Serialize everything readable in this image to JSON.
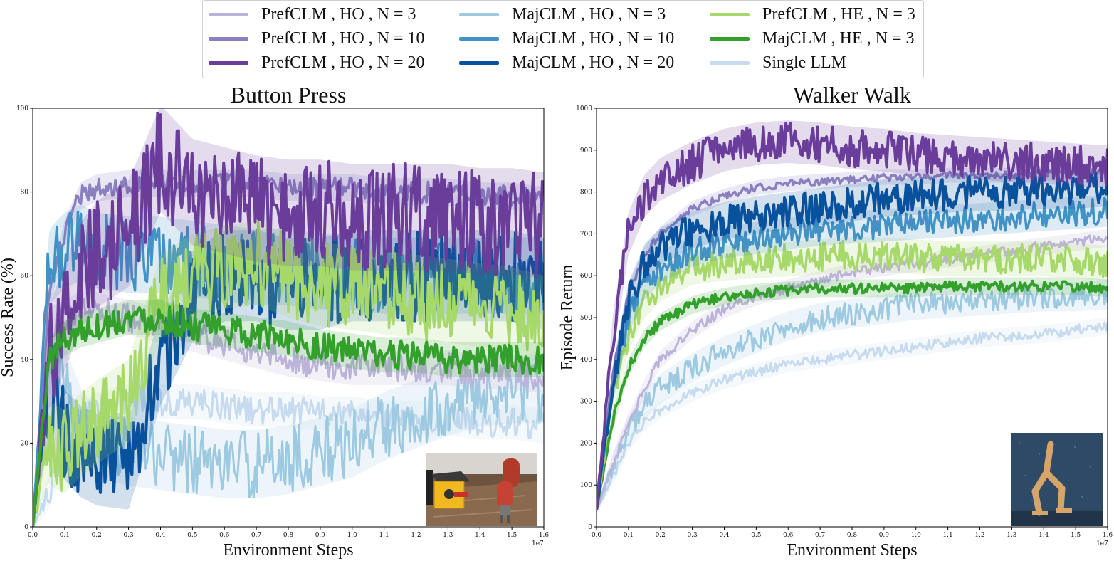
{
  "legend": [
    {
      "name": "PrefCLM , HO , N = 3",
      "color": "#bcb3da"
    },
    {
      "name": "PrefCLM , HO , N = 10",
      "color": "#8a80c0"
    },
    {
      "name": "PrefCLM , HO , N = 20",
      "color": "#6a3d9a"
    },
    {
      "name": "MajCLM , HO , N = 3",
      "color": "#9ecae1"
    },
    {
      "name": "MajCLM , HO , N = 10",
      "color": "#4292c6"
    },
    {
      "name": "MajCLM , HO , N = 20",
      "color": "#08519c"
    },
    {
      "name": "PrefCLM , HE , N = 3",
      "color": "#a6d96a"
    },
    {
      "name": "MajCLM , HE , N = 3",
      "color": "#33a02c"
    },
    {
      "name": "Single LLM",
      "color": "#c6dbef"
    }
  ],
  "chart_data": [
    {
      "type": "line",
      "title": "Button Press",
      "xlabel": "Environment Steps",
      "ylabel": "Success Rate (%)",
      "x_offset_label": "1e7",
      "xlim": [
        0.0,
        1.6
      ],
      "ylim": [
        0,
        100
      ],
      "xticks": [
        "0.0",
        "0.1",
        "0.2",
        "0.3",
        "0.4",
        "0.5",
        "0.6",
        "0.7",
        "0.8",
        "0.9",
        "1.0",
        "1.1",
        "1.2",
        "1.3",
        "1.4",
        "1.5",
        "1.6"
      ],
      "yticks": [
        "0",
        "20",
        "40",
        "60",
        "80",
        "100"
      ],
      "inset": "robot-arm-button-scene",
      "x": [
        0.0,
        0.05,
        0.1,
        0.15,
        0.2,
        0.3,
        0.4,
        0.5,
        0.6,
        0.7,
        0.8,
        0.9,
        1.0,
        1.1,
        1.2,
        1.3,
        1.4,
        1.5,
        1.6
      ],
      "series": [
        {
          "name": "Single LLM",
          "values": [
            0,
            8,
            20,
            25,
            28,
            30,
            30,
            30,
            29,
            28,
            28,
            27,
            27,
            26,
            26,
            26,
            25,
            25,
            24
          ]
        },
        {
          "name": "MajCLM , HO , N = 3",
          "values": [
            0,
            40,
            35,
            25,
            20,
            18,
            17,
            16,
            15,
            15,
            16,
            18,
            20,
            24,
            27,
            30,
            32,
            33,
            33
          ]
        },
        {
          "name": "PrefCLM , HO , N = 3",
          "values": [
            0,
            48,
            50,
            52,
            52,
            50,
            48,
            46,
            44,
            42,
            40,
            39,
            38,
            38,
            38,
            38,
            37,
            37,
            36
          ]
        },
        {
          "name": "PrefCLM , HO , N = 10",
          "values": [
            0,
            55,
            70,
            79,
            81,
            82,
            82,
            82,
            82,
            82,
            81,
            81,
            81,
            80,
            80,
            80,
            79,
            79,
            78
          ]
        },
        {
          "name": "MajCLM , HO , N = 10",
          "values": [
            0,
            62,
            66,
            68,
            66,
            65,
            65,
            64,
            63,
            62,
            62,
            61,
            61,
            60,
            60,
            60,
            60,
            60,
            60
          ]
        },
        {
          "name": "MajCLM , HO , N = 20",
          "values": [
            0,
            30,
            22,
            18,
            16,
            15,
            40,
            55,
            60,
            60,
            58,
            58,
            60,
            60,
            60,
            60,
            60,
            60,
            58
          ]
        },
        {
          "name": "PrefCLM , HE , N = 3",
          "values": [
            0,
            20,
            18,
            22,
            25,
            30,
            55,
            60,
            62,
            63,
            60,
            58,
            57,
            56,
            55,
            54,
            53,
            52,
            50
          ]
        },
        {
          "name": "PrefCLM , HO , N = 20",
          "values": [
            0,
            40,
            50,
            60,
            65,
            70,
            88,
            80,
            78,
            76,
            75,
            75,
            74,
            74,
            74,
            74,
            73,
            73,
            72
          ]
        },
        {
          "name": "MajCLM , HE , N = 3",
          "values": [
            0,
            40,
            45,
            47,
            48,
            50,
            50,
            48,
            47,
            46,
            45,
            43,
            42,
            41,
            41,
            40,
            40,
            40,
            40
          ]
        }
      ]
    },
    {
      "type": "line",
      "title": "Walker Walk",
      "xlabel": "Environment Steps",
      "ylabel": "Episode Return",
      "x_offset_label": "1e7",
      "xlim": [
        0.0,
        1.6
      ],
      "ylim": [
        0,
        1000
      ],
      "xticks": [
        "0.0",
        "0.1",
        "0.2",
        "0.3",
        "0.4",
        "0.5",
        "0.6",
        "0.7",
        "0.8",
        "0.9",
        "1.0",
        "1.1",
        "1.2",
        "1.3",
        "1.4",
        "1.5",
        "1.6"
      ],
      "yticks": [
        "0",
        "100",
        "200",
        "300",
        "400",
        "500",
        "600",
        "700",
        "800",
        "900",
        "1000"
      ],
      "inset": "walker-robot-scene",
      "x": [
        0.0,
        0.05,
        0.1,
        0.15,
        0.2,
        0.3,
        0.4,
        0.5,
        0.6,
        0.7,
        0.8,
        0.9,
        1.0,
        1.1,
        1.2,
        1.3,
        1.4,
        1.5,
        1.6
      ],
      "series": [
        {
          "name": "Single LLM",
          "values": [
            40,
            120,
            200,
            250,
            280,
            320,
            350,
            370,
            390,
            400,
            410,
            420,
            430,
            440,
            450,
            455,
            460,
            470,
            480
          ]
        },
        {
          "name": "MajCLM , HO , N = 3",
          "values": [
            40,
            140,
            230,
            290,
            330,
            380,
            420,
            450,
            480,
            500,
            510,
            520,
            530,
            535,
            540,
            545,
            550,
            550,
            555
          ]
        },
        {
          "name": "PrefCLM , HO , N = 3",
          "values": [
            40,
            150,
            250,
            330,
            400,
            470,
            520,
            550,
            570,
            590,
            610,
            620,
            630,
            640,
            650,
            660,
            670,
            680,
            690
          ]
        },
        {
          "name": "MajCLM , HE , N = 3",
          "values": [
            40,
            250,
            380,
            450,
            490,
            530,
            550,
            560,
            565,
            570,
            570,
            570,
            570,
            575,
            575,
            575,
            575,
            575,
            570
          ]
        },
        {
          "name": "PrefCLM , HE , N = 3",
          "values": [
            40,
            300,
            460,
            540,
            580,
            620,
            630,
            635,
            640,
            645,
            650,
            650,
            645,
            640,
            640,
            640,
            640,
            635,
            630
          ]
        },
        {
          "name": "MajCLM , HO , N = 10",
          "values": [
            40,
            330,
            500,
            580,
            620,
            660,
            680,
            690,
            700,
            710,
            715,
            720,
            725,
            730,
            735,
            740,
            745,
            750,
            755
          ]
        },
        {
          "name": "PrefCLM , HO , N = 10",
          "values": [
            40,
            360,
            560,
            650,
            700,
            760,
            790,
            810,
            820,
            825,
            830,
            835,
            835,
            840,
            840,
            840,
            845,
            845,
            850
          ]
        },
        {
          "name": "MajCLM , HO , N = 20",
          "values": [
            40,
            340,
            540,
            630,
            670,
            710,
            730,
            745,
            755,
            765,
            775,
            785,
            790,
            795,
            800,
            800,
            805,
            805,
            810
          ]
        },
        {
          "name": "PrefCLM , HO , N = 20",
          "values": [
            40,
            450,
            700,
            790,
            830,
            870,
            900,
            915,
            920,
            915,
            905,
            900,
            890,
            885,
            880,
            875,
            870,
            865,
            860
          ]
        }
      ]
    }
  ]
}
